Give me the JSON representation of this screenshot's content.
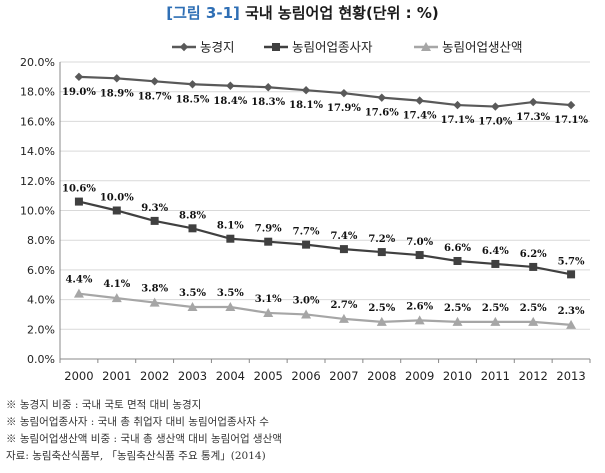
{
  "title_tag": "[그림 3-1]",
  "title_text": "국내 농림어업 현황(단위 : %)",
  "notes": [
    "※ 농경지 비중 : 국내 국토 면적 대비 농경지",
    "※ 농림어업종사자 : 국내 총 취업자 대비 농림어업종사자 수",
    "※ 농림어업생산액 비중 : 국내 총 생산액 대비 농림어업 생산액",
    "자료: 농림축산식품부, 「농림축산식품 주요 통계」(2014)"
  ],
  "chart_data": {
    "type": "line",
    "title": "국내 농림어업 현황(단위 : %)",
    "x": [
      "2000",
      "2001",
      "2002",
      "2003",
      "2004",
      "2005",
      "2006",
      "2007",
      "2008",
      "2009",
      "2010",
      "2011",
      "2012",
      "2013"
    ],
    "ylim": [
      0,
      20
    ],
    "yticks": [
      "0.0%",
      "2.0%",
      "4.0%",
      "6.0%",
      "8.0%",
      "10.0%",
      "12.0%",
      "14.0%",
      "16.0%",
      "18.0%",
      "20.0%"
    ],
    "ytick_values": [
      0,
      2,
      4,
      6,
      8,
      10,
      12,
      14,
      16,
      18,
      20
    ],
    "grid": true,
    "legend_position": "top",
    "series": [
      {
        "name": "농경지",
        "marker": "diamond",
        "color": "#595959",
        "values": [
          19.0,
          18.9,
          18.7,
          18.5,
          18.4,
          18.3,
          18.1,
          17.9,
          17.6,
          17.4,
          17.1,
          17.0,
          17.3,
          17.1
        ],
        "labels": [
          "19.0%",
          "18.9%",
          "18.7%",
          "18.5%",
          "18.4%",
          "18.3%",
          "18.1%",
          "17.9%",
          "17.6%",
          "17.4%",
          "17.1%",
          "17.0%",
          "17.3%",
          "17.1%"
        ]
      },
      {
        "name": "농림어업종사자",
        "marker": "square",
        "color": "#404040",
        "values": [
          10.6,
          10.0,
          9.3,
          8.8,
          8.1,
          7.9,
          7.7,
          7.4,
          7.2,
          7.0,
          6.6,
          6.4,
          6.2,
          5.7
        ],
        "labels": [
          "10.6%",
          "10.0%",
          "9.3%",
          "8.8%",
          "8.1%",
          "7.9%",
          "7.7%",
          "7.4%",
          "7.2%",
          "7.0%",
          "6.6%",
          "6.4%",
          "6.2%",
          "5.7%"
        ]
      },
      {
        "name": "농림어업생산액",
        "marker": "triangle",
        "color": "#a6a6a6",
        "values": [
          4.4,
          4.1,
          3.8,
          3.5,
          3.5,
          3.1,
          3.0,
          2.7,
          2.5,
          2.6,
          2.5,
          2.5,
          2.5,
          2.3
        ],
        "labels": [
          "4.4%",
          "4.1%",
          "3.8%",
          "3.5%",
          "3.5%",
          "3.1%",
          "3.0%",
          "2.7%",
          "2.5%",
          "2.6%",
          "2.5%",
          "2.5%",
          "2.5%",
          "2.3%"
        ]
      }
    ]
  }
}
